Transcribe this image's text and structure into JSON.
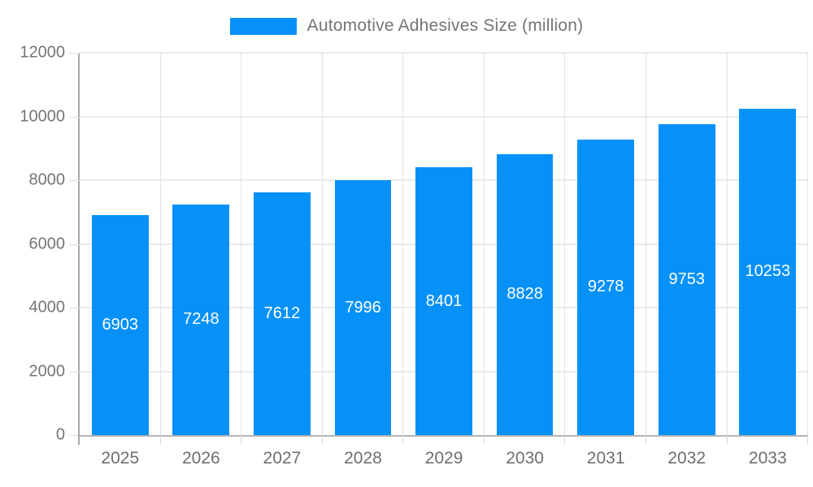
{
  "legend": {
    "label": "Automotive Adhesives Size (million)",
    "swatch_color": "#0591f8"
  },
  "chart_data": {
    "type": "bar",
    "title": "Automotive Adhesives Size (million)",
    "series_name": "Automotive Adhesives Size (million)",
    "categories": [
      "2025",
      "2026",
      "2027",
      "2028",
      "2029",
      "2030",
      "2031",
      "2032",
      "2033"
    ],
    "values": [
      6903,
      7248,
      7612,
      7996,
      8401,
      8828,
      9278,
      9753,
      10253
    ],
    "xlabel": "",
    "ylabel": "",
    "ylim": [
      0,
      12000
    ],
    "yticks": [
      0,
      2000,
      4000,
      6000,
      8000,
      10000,
      12000
    ],
    "grid": true,
    "legend_position": "top-center",
    "bar_color": "#0591f8",
    "bar_label_color": "#ffffff",
    "axis_text_color": "#757575",
    "gridline_color": "#e9e9e9",
    "axis_line_color": "#b3b3b3"
  }
}
